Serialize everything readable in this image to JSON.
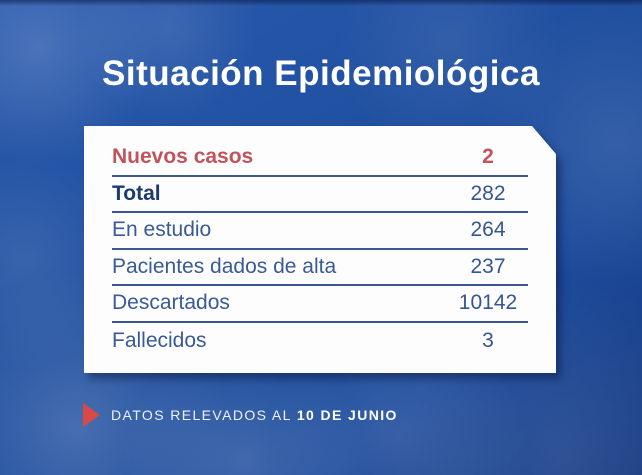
{
  "title": "Situación Epidemiológica",
  "table": {
    "rows": [
      {
        "label": "Nuevos casos",
        "value": "2"
      },
      {
        "label": "Total",
        "value": "282"
      },
      {
        "label": "En estudio",
        "value": "264"
      },
      {
        "label": "Pacientes dados de alta",
        "value": "237"
      },
      {
        "label": "Descartados",
        "value": "10142"
      },
      {
        "label": "Fallecidos",
        "value": "3"
      }
    ]
  },
  "footer": {
    "prefix": "DATOS RELEVADOS AL",
    "date": "10 DE JUNIO"
  },
  "colors": {
    "background_blue": "#1d4c9c",
    "card_white": "#fdfdfe",
    "accent_red": "#c0535c",
    "triangle_red": "#d84a47",
    "navy_text": "#3a5a96",
    "navy_dark": "#1d3a6e",
    "separator_navy": "#3b568f",
    "title_white": "#ffffff"
  },
  "chart_data": {
    "type": "table",
    "title": "Situación Epidemiológica",
    "categories": [
      "Nuevos casos",
      "Total",
      "En estudio",
      "Pacientes dados de alta",
      "Descartados",
      "Fallecidos"
    ],
    "values": [
      2,
      282,
      264,
      237,
      10142,
      3
    ],
    "annotations": [
      "DATOS RELEVADOS AL 10 DE JUNIO"
    ]
  }
}
